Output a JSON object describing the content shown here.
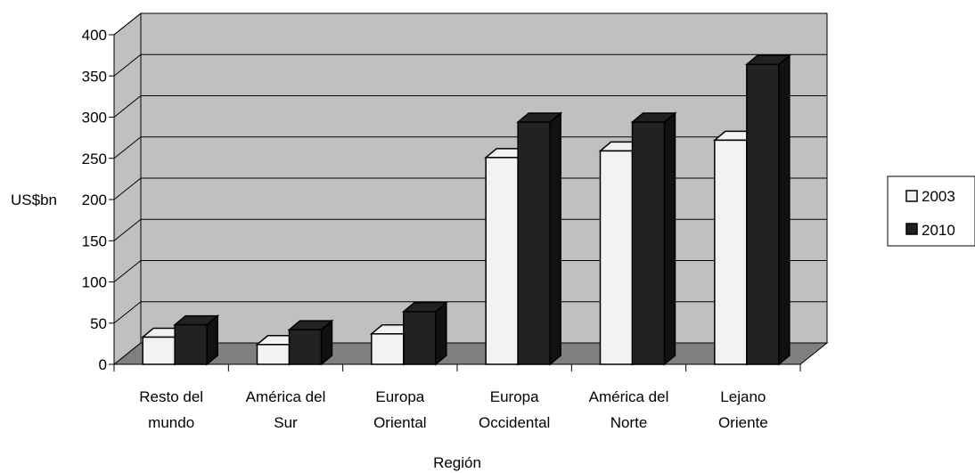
{
  "chart_data": {
    "type": "bar",
    "categories": [
      [
        "Resto del",
        "mundo"
      ],
      [
        "América del",
        "Sur"
      ],
      [
        "Europa",
        "Oriental"
      ],
      [
        "Europa",
        "Occidental"
      ],
      [
        "América del",
        "Norte"
      ],
      [
        "Lejano",
        "Oriente"
      ]
    ],
    "series": [
      {
        "name": "2003",
        "values": [
          33,
          24,
          37,
          251,
          259,
          272
        ],
        "color": "#f2f2f2"
      },
      {
        "name": "2010",
        "values": [
          48,
          42,
          64,
          294,
          294,
          364
        ],
        "color": "#222222"
      }
    ],
    "xlabel": "Región",
    "ylabel": "US$bn",
    "ylim": [
      0,
      400
    ],
    "yticks": [
      "0",
      "50",
      "100",
      "150",
      "200",
      "250",
      "300",
      "350",
      "400"
    ],
    "wall_color": "#c0c0c0",
    "floor_color": "#808080",
    "grid": true,
    "legend_position": "right",
    "style": "3d-clustered-column"
  }
}
